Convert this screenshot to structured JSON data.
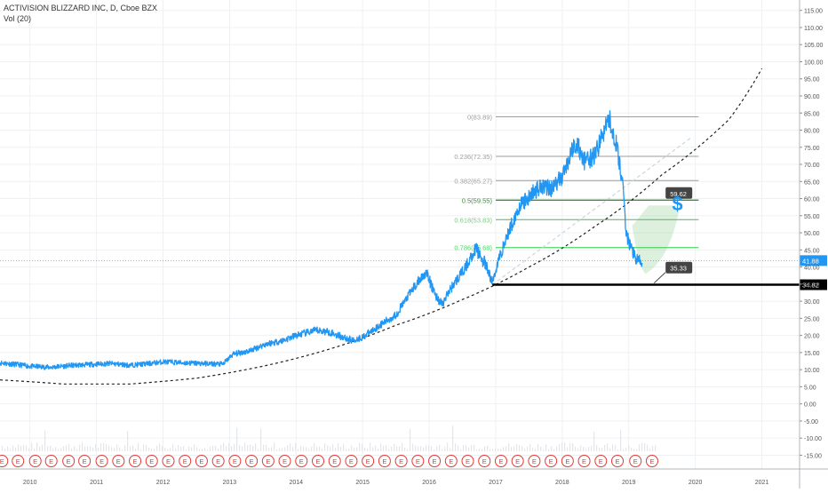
{
  "header": {
    "title": "ACTIVISION BLIZZARD INC, D, Cboe BZX",
    "volume": "Vol (20)"
  },
  "colors": {
    "price": "#2196f3",
    "grid": "#eef1f4",
    "fib_gray": "#9e9e9e",
    "fib_dark_green": "#388e3c",
    "fib_mid_green": "#81c784",
    "fib_bright_green": "#4cd964",
    "support": "#000000",
    "last_price": "#2196f3",
    "earnings": "#e53935"
  },
  "chart_data": {
    "type": "line",
    "x_ticks": [
      "2010",
      "2011",
      "2012",
      "2013",
      "2014",
      "2015",
      "2016",
      "2017",
      "2018",
      "2019",
      "2020",
      "2021"
    ],
    "y_ticks": [
      "115.00",
      "110.00",
      "105.00",
      "100.00",
      "95.00",
      "90.00",
      "85.00",
      "80.00",
      "75.00",
      "70.00",
      "65.00",
      "60.00",
      "55.00",
      "50.00",
      "45.00",
      "40.00",
      "35.00",
      "30.00",
      "25.00",
      "20.00",
      "15.00",
      "10.00",
      "5.00",
      "0.00",
      "-5.00",
      "-10.00",
      "-15.00"
    ],
    "ylim": [
      -18,
      117
    ],
    "xlim": [
      2009.55,
      2021.3
    ],
    "series": [
      {
        "values": [
          [
            2009.55,
            12.0
          ],
          [
            2009.8,
            11.5
          ],
          [
            2010.0,
            11.0
          ],
          [
            2010.3,
            10.7
          ],
          [
            2010.6,
            11.2
          ],
          [
            2010.9,
            11.5
          ],
          [
            2011.2,
            11.8
          ],
          [
            2011.5,
            11.3
          ],
          [
            2011.8,
            11.8
          ],
          [
            2012.0,
            12.3
          ],
          [
            2012.3,
            12.0
          ],
          [
            2012.6,
            11.8
          ],
          [
            2012.9,
            11.6
          ],
          [
            2013.05,
            14.5
          ],
          [
            2013.3,
            15.5
          ],
          [
            2013.55,
            17.5
          ],
          [
            2013.8,
            18.5
          ],
          [
            2014.0,
            20.0
          ],
          [
            2014.3,
            21.5
          ],
          [
            2014.5,
            21.0
          ],
          [
            2014.7,
            19.5
          ],
          [
            2014.85,
            18.5
          ],
          [
            2015.0,
            19.5
          ],
          [
            2015.3,
            23.5
          ],
          [
            2015.5,
            26.0
          ],
          [
            2015.75,
            33.5
          ],
          [
            2015.95,
            38.5
          ],
          [
            2016.1,
            31.5
          ],
          [
            2016.2,
            29.0
          ],
          [
            2016.3,
            33.0
          ],
          [
            2016.55,
            40.0
          ],
          [
            2016.7,
            45.5
          ],
          [
            2016.85,
            40.5
          ],
          [
            2016.95,
            35.5
          ],
          [
            2017.05,
            42.5
          ],
          [
            2017.2,
            50.5
          ],
          [
            2017.35,
            57.5
          ],
          [
            2017.55,
            61.5
          ],
          [
            2017.7,
            64.0
          ],
          [
            2017.85,
            63.0
          ],
          [
            2018.0,
            66.5
          ],
          [
            2018.2,
            76.5
          ],
          [
            2018.35,
            70.5
          ],
          [
            2018.5,
            73.0
          ],
          [
            2018.7,
            83.5
          ],
          [
            2018.8,
            77.0
          ],
          [
            2018.9,
            66.0
          ],
          [
            2018.95,
            52.0
          ],
          [
            2019.0,
            47.0
          ],
          [
            2019.05,
            45.0
          ],
          [
            2019.12,
            42.0
          ],
          [
            2019.2,
            41.2
          ]
        ]
      }
    ],
    "trend_curve": [
      [
        2009.55,
        7.0
      ],
      [
        2010.5,
        5.8
      ],
      [
        2011.5,
        5.8
      ],
      [
        2012.5,
        7.5
      ],
      [
        2013.5,
        11.0
      ],
      [
        2014.5,
        16.0
      ],
      [
        2015.5,
        23.0
      ],
      [
        2016.5,
        30.5
      ],
      [
        2017.5,
        40.0
      ],
      [
        2018.5,
        52.0
      ],
      [
        2019.5,
        67.0
      ],
      [
        2020.5,
        83.0
      ],
      [
        2021.0,
        98.0
      ]
    ],
    "fibonacci_levels": [
      {
        "label": "0(83.89)",
        "value": 83.89,
        "color_key": "fib_gray"
      },
      {
        "label": "0.236(72.35)",
        "value": 72.35,
        "color_key": "fib_gray"
      },
      {
        "label": "0.382(65.27)",
        "value": 65.27,
        "color_key": "fib_gray"
      },
      {
        "label": "0.5(59.55)",
        "value": 59.55,
        "color_key": "fib_dark_green"
      },
      {
        "label": "0.618(53.83)",
        "value": 53.83,
        "color_key": "fib_mid_green"
      },
      {
        "label": "0.786(45.68)",
        "value": 45.68,
        "color_key": "fib_bright_green"
      }
    ],
    "fib_x_range": [
      2017.0,
      2020.05
    ],
    "support_line": {
      "value": 34.82,
      "x_start": 2016.95
    },
    "last_price": 41.88,
    "price_labels": [
      {
        "text": "59.62",
        "x": 2019.5,
        "y": 61.5
      },
      {
        "text": "35.33",
        "x": 2019.5,
        "y": 39.7
      }
    ],
    "annotations": {
      "dollar": "$"
    },
    "earnings_marker": "E",
    "earnings_x": [
      2009.58,
      2009.82,
      2010.08,
      2010.32,
      2010.58,
      2010.82,
      2011.08,
      2011.33,
      2011.58,
      2011.83,
      2012.08,
      2012.33,
      2012.58,
      2012.83,
      2013.08,
      2013.33,
      2013.58,
      2013.83,
      2014.08,
      2014.33,
      2014.58,
      2014.83,
      2015.08,
      2015.33,
      2015.58,
      2015.83,
      2016.08,
      2016.33,
      2016.58,
      2016.83,
      2017.08,
      2017.33,
      2017.58,
      2017.83,
      2018.08,
      2018.33,
      2018.58,
      2018.83,
      2019.1,
      2019.35
    ]
  }
}
